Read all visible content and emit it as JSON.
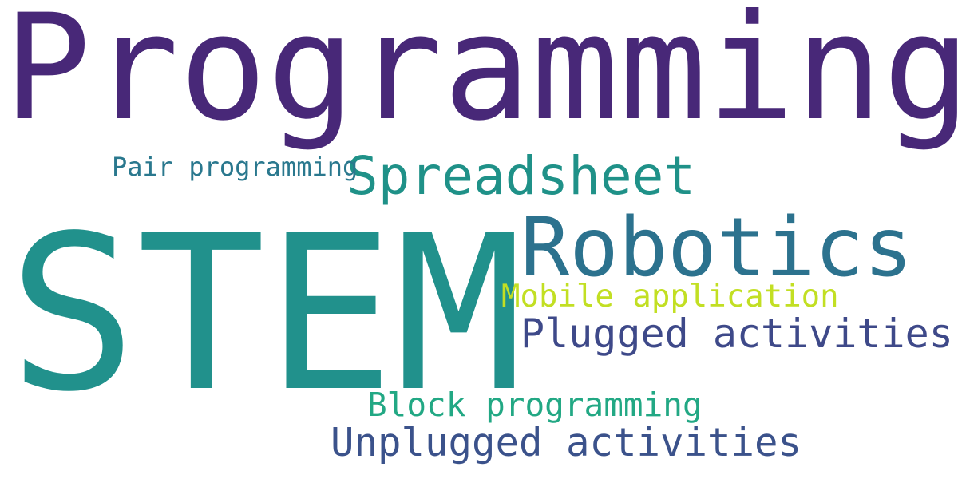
{
  "words": [
    {
      "id": "programming",
      "text": "Programming",
      "color": "#482878"
    },
    {
      "id": "stem",
      "text": "STEM",
      "color": "#21918c"
    },
    {
      "id": "robotics",
      "text": "Robotics",
      "color": "#2c728e"
    },
    {
      "id": "spreadsheet",
      "text": "Spreadsheet",
      "color": "#1f9188"
    },
    {
      "id": "pair",
      "text": "Pair programming",
      "color": "#2a788e"
    },
    {
      "id": "mobile",
      "text": "Mobile application",
      "color": "#c2df23"
    },
    {
      "id": "plugged",
      "text": "Plugged activities",
      "color": "#3e4989"
    },
    {
      "id": "block",
      "text": "Block programming",
      "color": "#22a884"
    },
    {
      "id": "unplugged",
      "text": "Unplugged activities",
      "color": "#3b528b"
    }
  ]
}
